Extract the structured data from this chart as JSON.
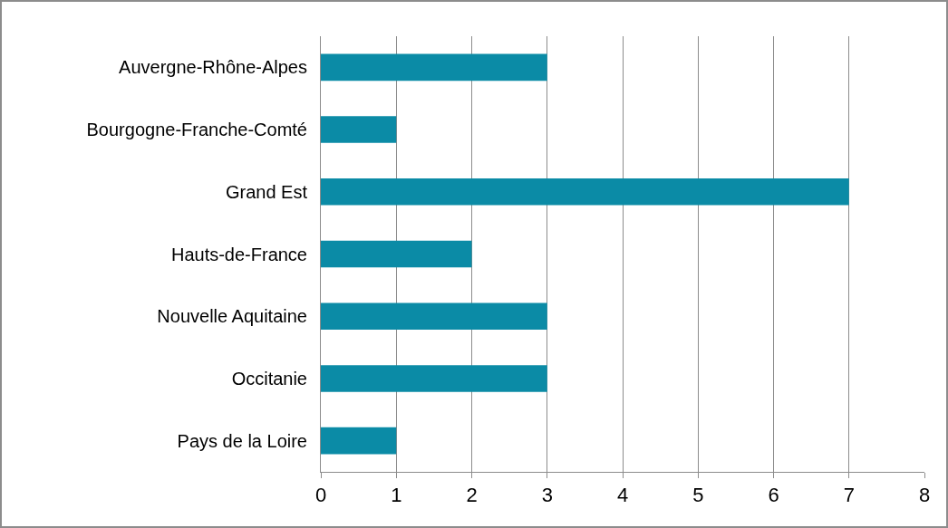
{
  "chart_data": {
    "type": "bar",
    "orientation": "horizontal",
    "categories": [
      "Auvergne-Rhône-Alpes",
      "Bourgogne-Franche-Comté",
      "Grand Est",
      "Hauts-de-France",
      "Nouvelle Aquitaine",
      "Occitanie",
      "Pays de la Loire"
    ],
    "values": [
      3,
      1,
      7,
      2,
      3,
      3,
      1
    ],
    "color": "#0b8ba6",
    "xlim": [
      0,
      8
    ],
    "xticks": [
      0,
      1,
      2,
      3,
      4,
      5,
      6,
      7,
      8
    ],
    "grid": "x",
    "legend": false
  }
}
